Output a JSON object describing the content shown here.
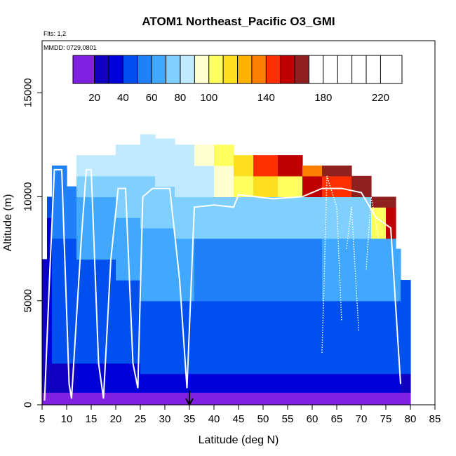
{
  "chart_data": {
    "type": "heatmap",
    "title": "ATOM1 Northeast_Pacific O3_GMI",
    "annotations": {
      "flights": "Flts: 1,2",
      "dates": "MMDD: 0729,0801"
    },
    "xlabel": "Latitude (deg N)",
    "ylabel": "Altitude (m)",
    "xlim": [
      5,
      85
    ],
    "ylim": [
      0,
      17500
    ],
    "x_ticks": [
      5,
      10,
      15,
      20,
      25,
      30,
      35,
      40,
      45,
      50,
      55,
      60,
      65,
      70,
      75,
      80,
      85
    ],
    "y_ticks": [
      0,
      5000,
      10000,
      15000
    ],
    "colorbar": {
      "range": [
        5,
        235
      ],
      "tick_values": [
        20,
        40,
        60,
        80,
        100,
        140,
        180,
        220
      ],
      "segment_boundaries": [
        5,
        20,
        30,
        40,
        50,
        60,
        70,
        80,
        90,
        100,
        110,
        120,
        130,
        140,
        150,
        160,
        170,
        180,
        190,
        200,
        210,
        220,
        235
      ],
      "colors": [
        "#8020e0",
        "#1000c0",
        "#0000d8",
        "#0050f0",
        "#2080f8",
        "#40a8ff",
        "#80d0ff",
        "#c0eaff",
        "#ffffd0",
        "#ffff60",
        "#ffe020",
        "#ffb000",
        "#ff8000",
        "#ff3000",
        "#c00000",
        "#902020"
      ]
    },
    "marker": {
      "x": 35,
      "label": "arrow"
    },
    "columns": [
      {
        "x0": 5,
        "x1": 6,
        "top": 7000,
        "layers": [
          [
            0,
            600,
            15
          ],
          [
            600,
            7000,
            28
          ]
        ]
      },
      {
        "x0": 6,
        "x1": 7,
        "top": 10000,
        "layers": [
          [
            0,
            600,
            15
          ],
          [
            600,
            2000,
            28
          ],
          [
            2000,
            9000,
            38
          ],
          [
            9000,
            10000,
            45
          ]
        ]
      },
      {
        "x0": 7,
        "x1": 10,
        "top": 11500,
        "layers": [
          [
            0,
            600,
            15
          ],
          [
            600,
            2000,
            28
          ],
          [
            2000,
            8000,
            40
          ],
          [
            8000,
            11500,
            50
          ]
        ]
      },
      {
        "x0": 10,
        "x1": 12,
        "top": 10500,
        "layers": [
          [
            0,
            600,
            15
          ],
          [
            600,
            2000,
            28
          ],
          [
            2000,
            8000,
            42
          ],
          [
            8000,
            10500,
            55
          ]
        ]
      },
      {
        "x0": 12,
        "x1": 16,
        "top": 12000,
        "layers": [
          [
            0,
            600,
            15
          ],
          [
            600,
            2000,
            30
          ],
          [
            2000,
            7000,
            42
          ],
          [
            7000,
            10000,
            60
          ],
          [
            10000,
            11000,
            70
          ],
          [
            11000,
            12000,
            80
          ]
        ]
      },
      {
        "x0": 16,
        "x1": 20,
        "top": 12000,
        "layers": [
          [
            0,
            600,
            15
          ],
          [
            600,
            2000,
            30
          ],
          [
            2000,
            7000,
            42
          ],
          [
            7000,
            10000,
            65
          ],
          [
            10000,
            11000,
            75
          ],
          [
            11000,
            12000,
            82
          ]
        ]
      },
      {
        "x0": 20,
        "x1": 25,
        "top": 12500,
        "layers": [
          [
            0,
            600,
            15
          ],
          [
            600,
            2000,
            30
          ],
          [
            2000,
            6000,
            42
          ],
          [
            6000,
            9000,
            65
          ],
          [
            9000,
            11000,
            75
          ],
          [
            11000,
            12500,
            82
          ]
        ]
      },
      {
        "x0": 25,
        "x1": 28,
        "top": 13000,
        "layers": [
          [
            0,
            600,
            15
          ],
          [
            600,
            1500,
            30
          ],
          [
            1500,
            5000,
            40
          ],
          [
            5000,
            8500,
            62
          ],
          [
            8500,
            11000,
            75
          ],
          [
            11000,
            13000,
            82
          ]
        ]
      },
      {
        "x0": 28,
        "x1": 32,
        "top": 12800,
        "layers": [
          [
            0,
            600,
            15
          ],
          [
            600,
            1500,
            30
          ],
          [
            1500,
            5000,
            40
          ],
          [
            5000,
            8500,
            62
          ],
          [
            8500,
            10500,
            75
          ],
          [
            10500,
            12800,
            82
          ]
        ]
      },
      {
        "x0": 32,
        "x1": 36,
        "top": 12500,
        "layers": [
          [
            0,
            600,
            15
          ],
          [
            600,
            1500,
            32
          ],
          [
            1500,
            5000,
            40
          ],
          [
            5000,
            8000,
            60
          ],
          [
            8000,
            10000,
            72
          ],
          [
            10000,
            11500,
            82
          ],
          [
            11500,
            12500,
            88
          ]
        ]
      },
      {
        "x0": 36,
        "x1": 40,
        "top": 12500,
        "layers": [
          [
            0,
            600,
            15
          ],
          [
            600,
            1500,
            32
          ],
          [
            1500,
            5000,
            40
          ],
          [
            5000,
            8000,
            58
          ],
          [
            8000,
            10000,
            70
          ],
          [
            10000,
            11500,
            85
          ],
          [
            11500,
            12500,
            95
          ]
        ]
      },
      {
        "x0": 40,
        "x1": 44,
        "top": 12500,
        "layers": [
          [
            0,
            600,
            15
          ],
          [
            600,
            1500,
            32
          ],
          [
            1500,
            5000,
            40
          ],
          [
            5000,
            8000,
            58
          ],
          [
            8000,
            10000,
            72
          ],
          [
            10000,
            11500,
            92
          ],
          [
            11500,
            12500,
            100
          ]
        ]
      },
      {
        "x0": 44,
        "x1": 48,
        "top": 12000,
        "layers": [
          [
            0,
            600,
            15
          ],
          [
            600,
            1500,
            32
          ],
          [
            1500,
            5000,
            40
          ],
          [
            5000,
            8000,
            58
          ],
          [
            8000,
            10000,
            72
          ],
          [
            10000,
            11000,
            100
          ],
          [
            11000,
            12000,
            115
          ]
        ]
      },
      {
        "x0": 48,
        "x1": 53,
        "top": 12000,
        "layers": [
          [
            0,
            600,
            15
          ],
          [
            600,
            1500,
            32
          ],
          [
            1500,
            5000,
            40
          ],
          [
            5000,
            8000,
            58
          ],
          [
            8000,
            10000,
            72
          ],
          [
            10000,
            11000,
            110
          ],
          [
            11000,
            12000,
            145
          ]
        ]
      },
      {
        "x0": 53,
        "x1": 58,
        "top": 12000,
        "layers": [
          [
            0,
            600,
            15
          ],
          [
            600,
            1500,
            32
          ],
          [
            1500,
            5000,
            40
          ],
          [
            5000,
            8000,
            58
          ],
          [
            8000,
            10000,
            72
          ],
          [
            10000,
            11000,
            105
          ],
          [
            11000,
            12000,
            150
          ]
        ]
      },
      {
        "x0": 58,
        "x1": 62,
        "top": 11500,
        "layers": [
          [
            0,
            600,
            15
          ],
          [
            600,
            1500,
            32
          ],
          [
            1500,
            5000,
            40
          ],
          [
            5000,
            8000,
            58
          ],
          [
            8000,
            10000,
            75
          ],
          [
            10000,
            11000,
            150
          ],
          [
            11000,
            11500,
            135
          ]
        ]
      },
      {
        "x0": 62,
        "x1": 68,
        "top": 11500,
        "layers": [
          [
            0,
            600,
            15
          ],
          [
            600,
            1500,
            32
          ],
          [
            1500,
            5000,
            42
          ],
          [
            5000,
            8000,
            60
          ],
          [
            8000,
            10000,
            75
          ],
          [
            10000,
            11000,
            145
          ],
          [
            11000,
            11500,
            185
          ]
        ]
      },
      {
        "x0": 68,
        "x1": 72,
        "top": 11000,
        "layers": [
          [
            0,
            600,
            15
          ],
          [
            600,
            1500,
            30
          ],
          [
            1500,
            5000,
            42
          ],
          [
            5000,
            8000,
            60
          ],
          [
            8000,
            10000,
            72
          ],
          [
            10000,
            11000,
            170
          ]
        ]
      },
      {
        "x0": 72,
        "x1": 75,
        "top": 10000,
        "layers": [
          [
            0,
            600,
            15
          ],
          [
            600,
            1500,
            30
          ],
          [
            1500,
            5000,
            42
          ],
          [
            5000,
            8000,
            60
          ],
          [
            8000,
            9500,
            100
          ],
          [
            9500,
            10000,
            175
          ]
        ]
      },
      {
        "x0": 75,
        "x1": 77,
        "top": 10000,
        "layers": [
          [
            0,
            600,
            15
          ],
          [
            600,
            1500,
            30
          ],
          [
            1500,
            5000,
            42
          ],
          [
            5000,
            8000,
            60
          ],
          [
            8000,
            9500,
            150
          ],
          [
            9500,
            10000,
            215
          ]
        ]
      },
      {
        "x0": 77,
        "x1": 78,
        "top": 7500,
        "layers": [
          [
            0,
            600,
            15
          ],
          [
            600,
            1500,
            30
          ],
          [
            1500,
            5000,
            42
          ],
          [
            5000,
            7500,
            60
          ]
        ]
      },
      {
        "x0": 78,
        "x1": 80,
        "top": 6000,
        "layers": [
          [
            0,
            600,
            15
          ],
          [
            600,
            1500,
            28
          ],
          [
            1500,
            6000,
            42
          ]
        ]
      }
    ],
    "flight_track": [
      [
        5.5,
        200
      ],
      [
        6.5,
        6000
      ],
      [
        7.5,
        11300
      ],
      [
        9,
        11300
      ],
      [
        10.5,
        1000
      ],
      [
        11,
        300
      ],
      [
        13,
        8000
      ],
      [
        14,
        11300
      ],
      [
        15,
        11300
      ],
      [
        16.5,
        2000
      ],
      [
        17.5,
        300
      ],
      [
        19,
        7000
      ],
      [
        20.5,
        10400
      ],
      [
        22,
        10400
      ],
      [
        23.5,
        2000
      ],
      [
        24.5,
        800
      ],
      [
        25.5,
        10000
      ],
      [
        27.5,
        10400
      ],
      [
        31,
        10400
      ],
      [
        33,
        6000
      ],
      [
        34.5,
        800
      ],
      [
        36,
        9500
      ],
      [
        40,
        9600
      ],
      [
        44,
        9500
      ],
      [
        45,
        10100
      ],
      [
        52,
        9900
      ],
      [
        58,
        10000
      ],
      [
        62,
        10400
      ],
      [
        66,
        10400
      ],
      [
        70,
        10200
      ],
      [
        73,
        9000
      ],
      [
        76,
        8500
      ],
      [
        78,
        1000
      ]
    ],
    "track_dotted_segments": [
      [
        [
          62,
          2500
        ],
        [
          62.5,
          6500
        ],
        [
          63,
          11000
        ],
        [
          65,
          9500
        ],
        [
          66,
          4000
        ]
      ],
      [
        [
          67,
          7500
        ],
        [
          68,
          9500
        ],
        [
          69.5,
          3500
        ]
      ],
      [
        [
          71,
          6500
        ],
        [
          72,
          10000
        ],
        [
          73.5,
          8000
        ]
      ]
    ]
  }
}
